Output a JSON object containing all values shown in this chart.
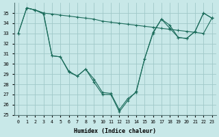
{
  "background_color": "#c8e8e8",
  "grid_color": "#a0c8c8",
  "line_color": "#1a6b5a",
  "xlim": [
    -0.5,
    23.5
  ],
  "ylim": [
    25,
    36
  ],
  "yticks": [
    25,
    26,
    27,
    28,
    29,
    30,
    31,
    32,
    33,
    34,
    35
  ],
  "xticks": [
    0,
    1,
    2,
    3,
    4,
    5,
    6,
    7,
    8,
    9,
    10,
    11,
    12,
    13,
    14,
    15,
    16,
    17,
    18,
    19,
    20,
    21,
    22,
    23
  ],
  "xlabel": "Humidex (Indice chaleur)",
  "line1_x": [
    0,
    1,
    2,
    3,
    4,
    5,
    6,
    7,
    8,
    9,
    10,
    11,
    12,
    13,
    14,
    15,
    16,
    17,
    18,
    19,
    20,
    21,
    22,
    23
  ],
  "line1_y": [
    33.0,
    35.5,
    35.3,
    35.0,
    34.9,
    34.8,
    34.7,
    34.6,
    34.5,
    34.4,
    34.2,
    34.1,
    34.0,
    33.9,
    33.8,
    33.7,
    33.6,
    33.5,
    33.4,
    33.3,
    33.2,
    33.1,
    33.0,
    34.5
  ],
  "line2_x": [
    0,
    1,
    2,
    3,
    4,
    5,
    6,
    7,
    8,
    9,
    10,
    11,
    12,
    13,
    14,
    15,
    16,
    17,
    18,
    19,
    20,
    21,
    22,
    23
  ],
  "line2_y": [
    33.0,
    35.5,
    35.3,
    35.0,
    30.8,
    30.7,
    29.3,
    28.8,
    29.5,
    28.2,
    27.0,
    27.0,
    25.3,
    26.4,
    27.3,
    30.5,
    33.0,
    34.4,
    33.8,
    32.6,
    32.5,
    33.2,
    35.0,
    34.5
  ],
  "line3_x": [
    1,
    2,
    3,
    4,
    5,
    6,
    7,
    8,
    9,
    10,
    11,
    12,
    13,
    14,
    15,
    16,
    17,
    18,
    19,
    20,
    21,
    22,
    23
  ],
  "line3_y": [
    35.5,
    35.3,
    34.9,
    30.8,
    30.7,
    29.2,
    28.8,
    29.5,
    28.5,
    27.2,
    27.1,
    25.5,
    26.6,
    27.2,
    30.5,
    33.1,
    34.4,
    33.5,
    32.6,
    32.5,
    33.2,
    35.0,
    34.5
  ]
}
